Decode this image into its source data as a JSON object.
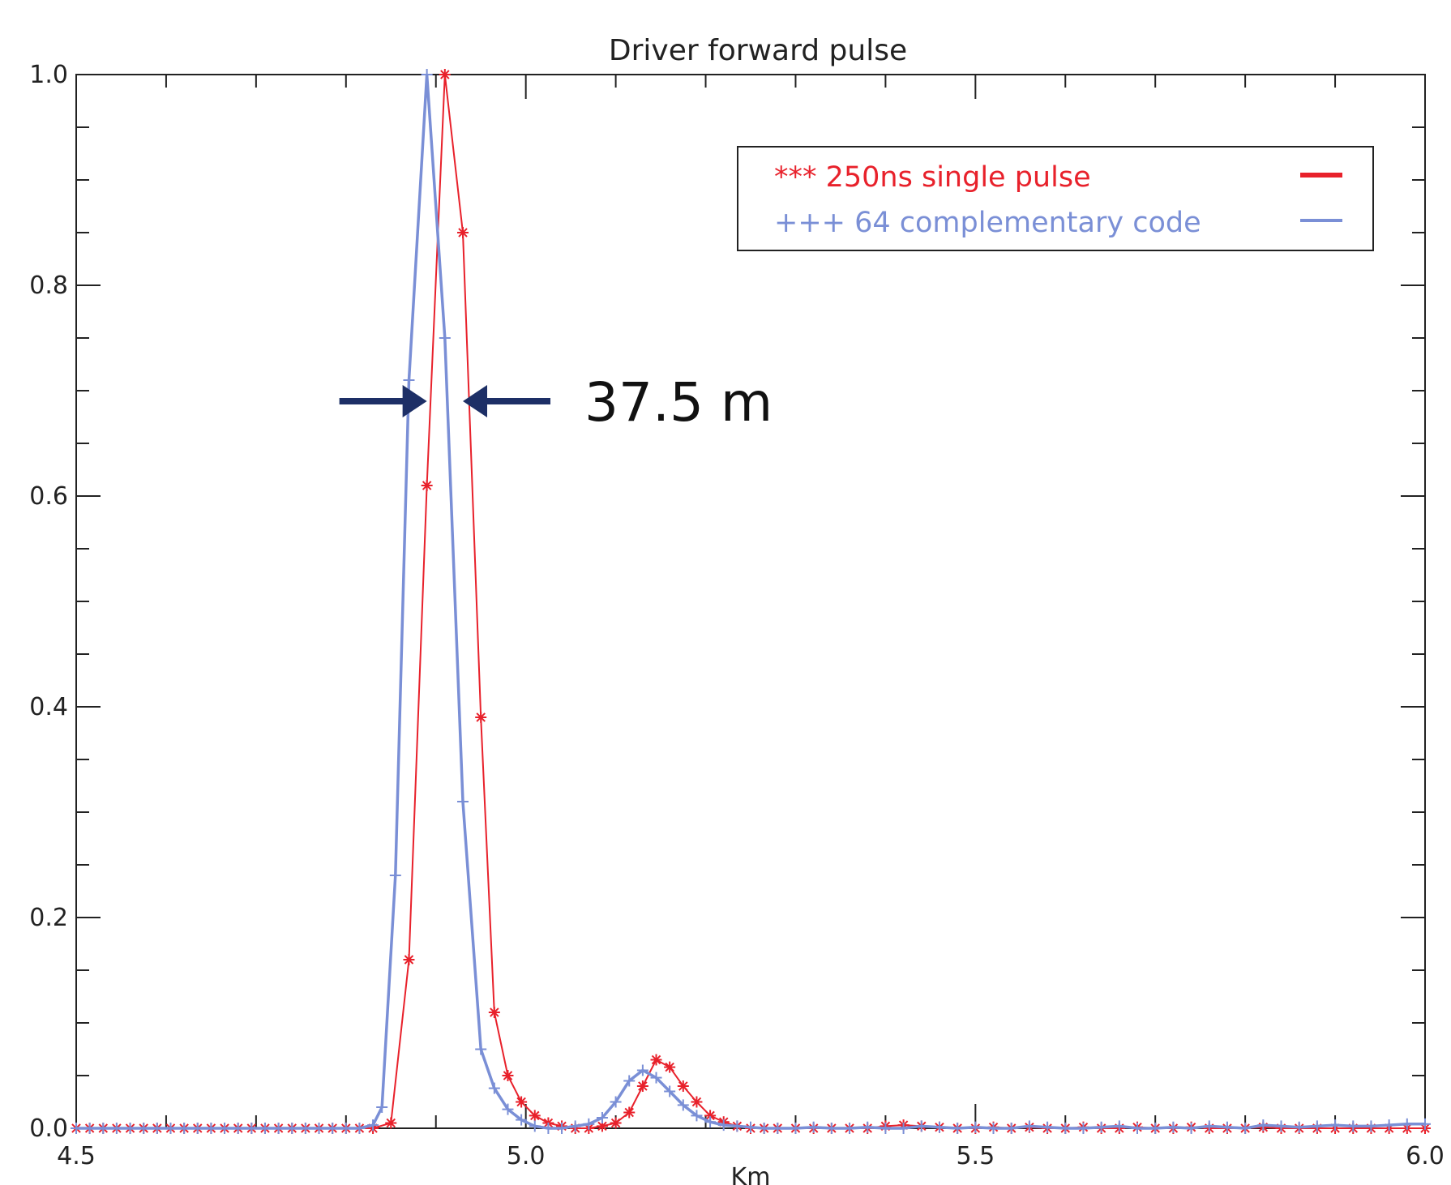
{
  "chart_data": {
    "type": "line",
    "title": "Driver forward  pulse",
    "xlabel": "Km",
    "ylabel": "",
    "xlim": [
      4.5,
      6.0
    ],
    "ylim": [
      0.0,
      1.0
    ],
    "x_ticks": [
      "4.5",
      "5.0",
      "5.5",
      "6.0"
    ],
    "y_ticks": [
      "0.0",
      "0.2",
      "0.4",
      "0.6",
      "0.8",
      "1.0"
    ],
    "grid": false,
    "legend_position": "top-right",
    "series": [
      {
        "name": "*** 250ns single pulse",
        "color": "#e8212b",
        "marker": "asterisk",
        "x": [
          4.5,
          4.515,
          4.53,
          4.545,
          4.56,
          4.575,
          4.59,
          4.605,
          4.62,
          4.635,
          4.65,
          4.665,
          4.68,
          4.695,
          4.71,
          4.725,
          4.74,
          4.755,
          4.77,
          4.785,
          4.8,
          4.815,
          4.83,
          4.85,
          4.87,
          4.89,
          4.91,
          4.93,
          4.95,
          4.965,
          4.98,
          4.995,
          5.01,
          5.025,
          5.04,
          5.055,
          5.07,
          5.085,
          5.1,
          5.115,
          5.13,
          5.145,
          5.16,
          5.175,
          5.19,
          5.205,
          5.22,
          5.235,
          5.25,
          5.265,
          5.28,
          5.3,
          5.32,
          5.34,
          5.36,
          5.38,
          5.4,
          5.42,
          5.44,
          5.46,
          5.48,
          5.5,
          5.52,
          5.54,
          5.56,
          5.58,
          5.6,
          5.62,
          5.64,
          5.66,
          5.68,
          5.7,
          5.72,
          5.74,
          5.76,
          5.78,
          5.8,
          5.82,
          5.84,
          5.86,
          5.88,
          5.9,
          5.92,
          5.94,
          5.96,
          5.98,
          6.0
        ],
        "values": [
          0.0,
          0.0,
          0.0,
          0.0,
          0.0,
          0.0,
          0.0,
          0.0,
          0.0,
          0.0,
          0.0,
          0.0,
          0.0,
          0.0,
          0.0,
          0.0,
          0.0,
          0.0,
          0.0,
          0.0,
          0.0,
          0.0,
          0.0,
          0.005,
          0.16,
          0.61,
          1.0,
          0.85,
          0.39,
          0.11,
          0.05,
          0.025,
          0.012,
          0.005,
          0.002,
          0.0,
          0.0,
          0.002,
          0.005,
          0.015,
          0.04,
          0.065,
          0.058,
          0.04,
          0.025,
          0.012,
          0.006,
          0.002,
          0.0,
          0.0,
          0.0,
          0.0,
          0.0,
          0.0,
          0.0,
          0.0,
          0.002,
          0.003,
          0.002,
          0.001,
          0.0,
          0.0,
          0.001,
          0.0,
          0.001,
          0.0,
          0.0,
          0.001,
          0.0,
          0.0,
          0.001,
          0.0,
          0.0,
          0.001,
          0.0,
          0.0,
          0.0,
          0.001,
          0.0,
          0.0,
          0.0,
          0.0,
          0.0,
          0.0,
          0.0,
          0.0,
          0.0
        ]
      },
      {
        "name": "+++ 64 complementary code",
        "color": "#7a8fd6",
        "marker": "plus",
        "x": [
          4.5,
          4.515,
          4.53,
          4.545,
          4.56,
          4.575,
          4.59,
          4.605,
          4.62,
          4.635,
          4.65,
          4.665,
          4.68,
          4.695,
          4.71,
          4.725,
          4.74,
          4.755,
          4.77,
          4.785,
          4.8,
          4.815,
          4.83,
          4.84,
          4.855,
          4.87,
          4.89,
          4.91,
          4.93,
          4.95,
          4.965,
          4.98,
          4.995,
          5.01,
          5.025,
          5.04,
          5.055,
          5.07,
          5.085,
          5.1,
          5.115,
          5.13,
          5.145,
          5.16,
          5.175,
          5.19,
          5.205,
          5.22,
          5.235,
          5.25,
          5.265,
          5.28,
          5.3,
          5.32,
          5.34,
          5.36,
          5.38,
          5.4,
          5.42,
          5.44,
          5.46,
          5.48,
          5.5,
          5.52,
          5.54,
          5.56,
          5.58,
          5.6,
          5.62,
          5.64,
          5.66,
          5.68,
          5.7,
          5.72,
          5.74,
          5.76,
          5.78,
          5.8,
          5.82,
          5.84,
          5.86,
          5.88,
          5.9,
          5.92,
          5.94,
          5.96,
          5.98,
          6.0
        ],
        "values": [
          0.0,
          0.0,
          0.0,
          0.0,
          0.0,
          0.0,
          0.0,
          0.0,
          0.0,
          0.0,
          0.0,
          0.0,
          0.0,
          0.0,
          0.0,
          0.0,
          0.0,
          0.0,
          0.0,
          0.0,
          0.0,
          0.0,
          0.003,
          0.02,
          0.24,
          0.71,
          1.0,
          0.75,
          0.31,
          0.075,
          0.038,
          0.018,
          0.008,
          0.002,
          0.0,
          0.0,
          0.002,
          0.004,
          0.01,
          0.025,
          0.045,
          0.055,
          0.048,
          0.035,
          0.022,
          0.012,
          0.006,
          0.003,
          0.002,
          0.001,
          0.0,
          0.0,
          0.0,
          0.001,
          0.0,
          0.0,
          0.001,
          0.0,
          0.0,
          0.002,
          0.001,
          0.0,
          0.001,
          0.0,
          0.0,
          0.002,
          0.001,
          0.0,
          0.0,
          0.001,
          0.002,
          0.0,
          0.0,
          0.001,
          0.0,
          0.002,
          0.001,
          0.0,
          0.003,
          0.002,
          0.001,
          0.002,
          0.003,
          0.002,
          0.002,
          0.003,
          0.004,
          0.004
        ]
      }
    ],
    "annotations": [
      {
        "text": "37.5 m",
        "type": "width-marker",
        "x_left": 4.89,
        "x_right": 4.93,
        "y": 0.69
      }
    ]
  }
}
